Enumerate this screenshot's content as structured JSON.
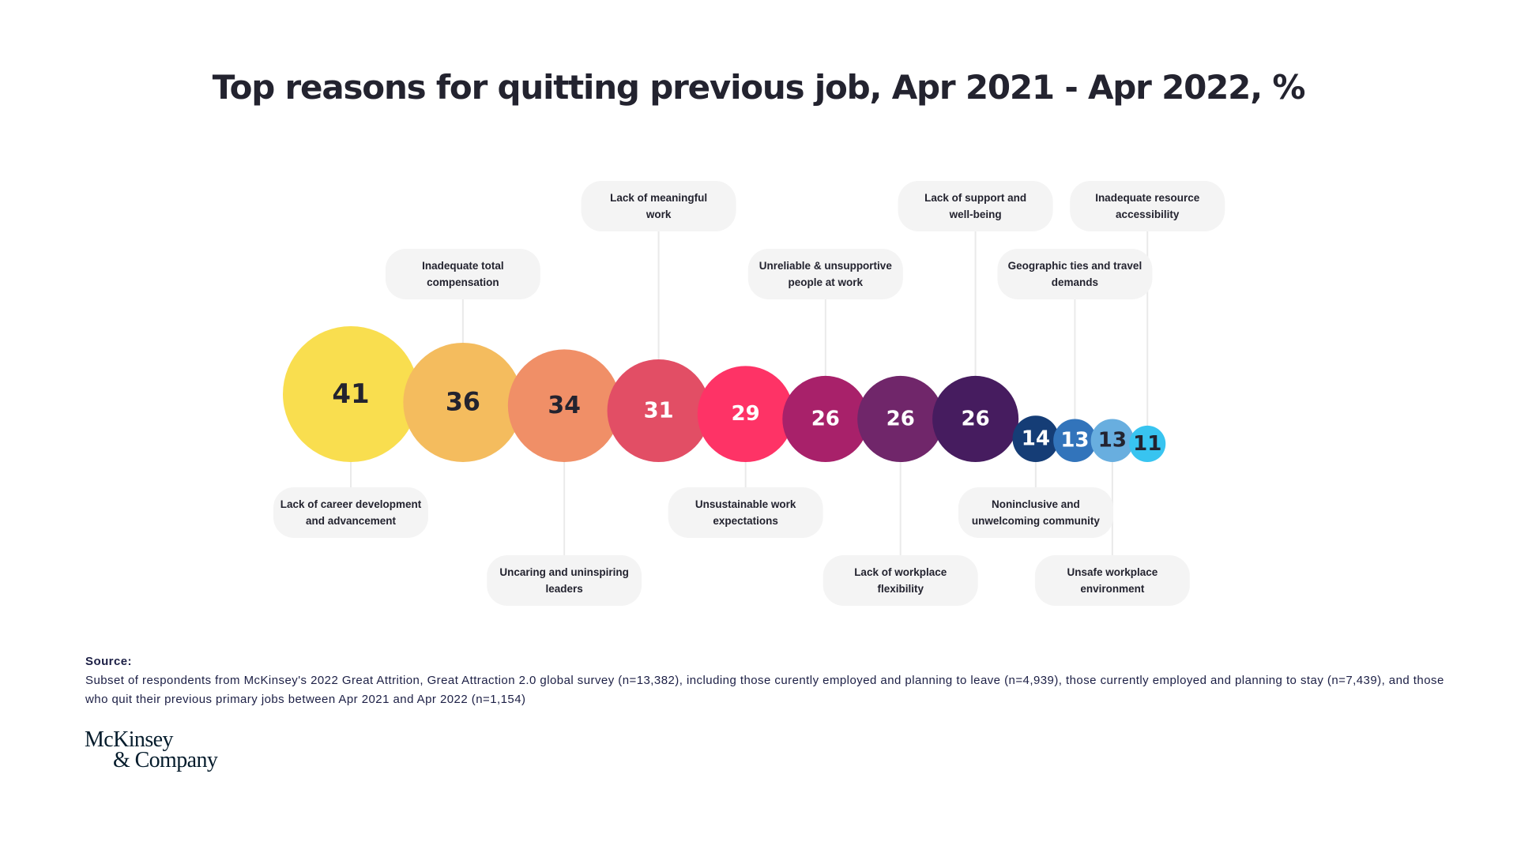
{
  "page": {
    "title": "Top reasons for quitting previous job, Apr 2021 - Apr 2022, %"
  },
  "chart_data": {
    "type": "bubble",
    "title": "Top reasons for quitting previous job, Apr 2021 - Apr 2022, %",
    "unit": "%",
    "items": [
      {
        "label": [
          "Lack of career development",
          "and advancement"
        ],
        "value": 41,
        "color": "#F9DE4F",
        "text_color": "#23232f",
        "label_pos": "below-near"
      },
      {
        "label": [
          "Inadequate total",
          "compensation"
        ],
        "value": 36,
        "color": "#F4BC5E",
        "text_color": "#23232f",
        "label_pos": "above-near"
      },
      {
        "label": [
          "Uncaring and uninspiring",
          "leaders"
        ],
        "value": 34,
        "color": "#F08F67",
        "text_color": "#23232f",
        "label_pos": "below-far"
      },
      {
        "label": [
          "Lack of meaningful",
          "work"
        ],
        "value": 31,
        "color": "#E24E65",
        "text_color": "#ffffff",
        "label_pos": "above-far"
      },
      {
        "label": [
          "Unsustainable work",
          "expectations"
        ],
        "value": 29,
        "color": "#FE3366",
        "text_color": "#ffffff",
        "label_pos": "below-near"
      },
      {
        "label": [
          "Unreliable & unsupportive",
          "people at work"
        ],
        "value": 26,
        "color": "#A8216A",
        "text_color": "#ffffff",
        "label_pos": "above-near"
      },
      {
        "label": [
          "Lack of workplace",
          "flexibility"
        ],
        "value": 26,
        "color": "#70266A",
        "text_color": "#ffffff",
        "label_pos": "below-far"
      },
      {
        "label": [
          "Lack of support and",
          "well-being"
        ],
        "value": 26,
        "color": "#461C5F",
        "text_color": "#ffffff",
        "label_pos": "above-far"
      },
      {
        "label": [
          "Noninclusive and",
          "unwelcoming community"
        ],
        "value": 14,
        "color": "#153D76",
        "text_color": "#ffffff",
        "label_pos": "below-near"
      },
      {
        "label": [
          "Geographic ties and travel",
          "demands"
        ],
        "value": 13,
        "color": "#3274BB",
        "text_color": "#ffffff",
        "label_pos": "above-near"
      },
      {
        "label": [
          "Unsafe workplace",
          "environment"
        ],
        "value": 13,
        "color": "#68AEDF",
        "text_color": "#23232f",
        "label_pos": "below-far"
      },
      {
        "label": [
          "Inadequate resource",
          "accessibility"
        ],
        "value": 11,
        "color": "#38C4F0",
        "text_color": "#23232f",
        "label_pos": "above-far"
      }
    ],
    "label_box_color": "#F4F4F4",
    "connector_color": "#EAEAEA"
  },
  "source": {
    "heading": "Source:",
    "text": "Subset of respondents from McKinsey's 2022 Great Attrition, Great Attraction 2.0 global survey (n=13,382), including those curently employed and planning to leave (n=4,939), those currently employed and planning to stay (n=7,439), and those who quit their previous primary jobs between Apr 2021 and Apr 2022 (n=1,154)"
  },
  "logo": {
    "line1": "McKinsey",
    "line2": "& Company"
  }
}
